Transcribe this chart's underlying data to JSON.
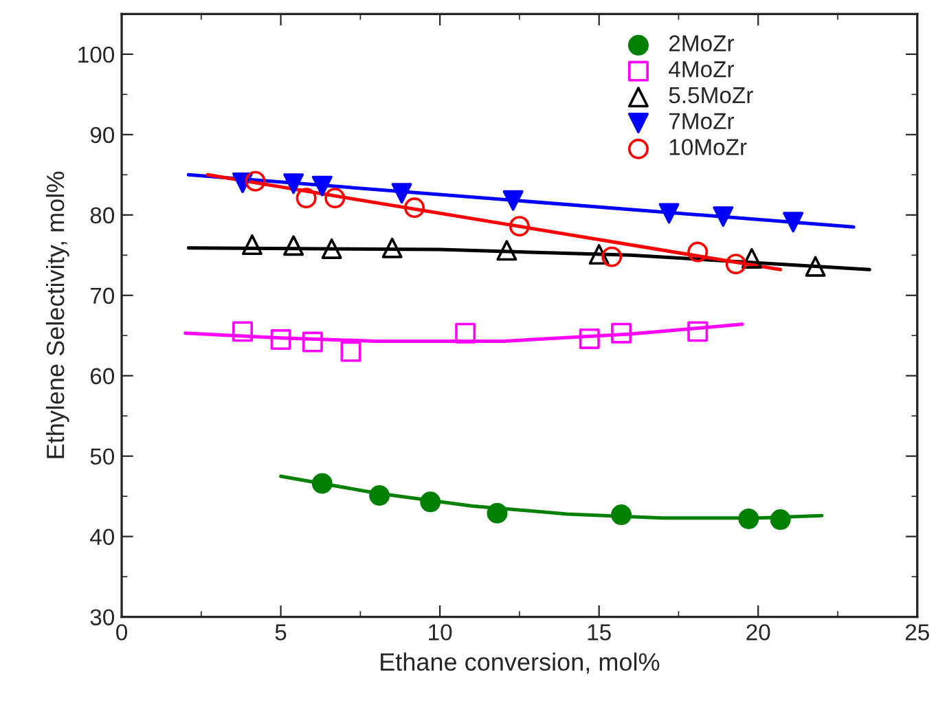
{
  "chart_data": {
    "type": "scatter",
    "xlabel": "Ethane conversion, mol%",
    "ylabel": "Ethylene Selectivity, mol%",
    "xlim": [
      0,
      25
    ],
    "xticks": [
      0,
      5,
      10,
      15,
      20,
      25
    ],
    "ylim": [
      30,
      105
    ],
    "yticks": [
      30,
      40,
      50,
      60,
      70,
      80,
      90,
      100
    ],
    "legend": "top right",
    "grid": false,
    "series": [
      {
        "name": "2MoZr",
        "color": "#008000",
        "marker": "circle",
        "x": [
          6.3,
          8.1,
          9.7,
          11.8,
          15.7,
          19.7,
          20.7
        ],
        "values": [
          46.6,
          45.1,
          44.3,
          42.9,
          42.7,
          42.2,
          42.1
        ]
      },
      {
        "name": "4MoZr",
        "color": "#ff00ff",
        "marker": "square",
        "x": [
          3.8,
          5.0,
          6.0,
          7.2,
          10.8,
          14.7,
          15.7,
          18.1
        ],
        "values": [
          65.5,
          64.5,
          64.2,
          63.0,
          65.3,
          64.6,
          65.3,
          65.5
        ]
      },
      {
        "name": "5.5MoZr",
        "color": "#000000",
        "marker": "triangle",
        "x": [
          4.1,
          5.4,
          6.6,
          8.5,
          12.1,
          15.0,
          19.8,
          21.8
        ],
        "values": [
          76.3,
          76.2,
          75.8,
          75.9,
          75.6,
          75.1,
          74.6,
          73.6
        ]
      },
      {
        "name": "7MoZr",
        "color": "#0000ff",
        "marker": "triangle_down",
        "x": [
          3.8,
          5.4,
          6.3,
          8.8,
          12.3,
          17.2,
          18.9,
          21.1
        ],
        "values": [
          84.0,
          83.9,
          83.6,
          82.7,
          81.8,
          80.2,
          79.8,
          79.1
        ]
      },
      {
        "name": "10MoZr",
        "color": "#ff0000",
        "marker": "circle_open",
        "x": [
          4.2,
          5.8,
          6.7,
          9.2,
          12.5,
          15.4,
          18.1,
          19.3
        ],
        "values": [
          84.2,
          82.1,
          82.1,
          80.9,
          78.6,
          74.8,
          75.4,
          73.9
        ]
      },
      {
        "type": "line",
        "color": "#008000",
        "x": [
          5.0,
          8.0,
          11.0,
          14.0,
          17.0,
          20.0,
          22.0
        ],
        "values": [
          47.5,
          45.4,
          43.8,
          42.8,
          42.3,
          42.3,
          42.6
        ]
      },
      {
        "type": "line",
        "color": "#ff00ff",
        "x": [
          2.0,
          5.0,
          8.0,
          12.0,
          16.0,
          19.5
        ],
        "values": [
          65.3,
          64.7,
          64.3,
          64.3,
          65.2,
          66.4
        ]
      },
      {
        "type": "line",
        "color": "#000000",
        "x": [
          2.1,
          10.0,
          16.0,
          23.5
        ],
        "values": [
          75.9,
          75.7,
          75.0,
          73.2
        ]
      },
      {
        "type": "line",
        "color": "#0000ff",
        "x": [
          2.1,
          23.0
        ],
        "values": [
          85.0,
          78.5
        ]
      },
      {
        "type": "line",
        "color": "#ff0000",
        "x": [
          2.7,
          20.7
        ],
        "values": [
          85.0,
          73.2
        ]
      }
    ]
  }
}
